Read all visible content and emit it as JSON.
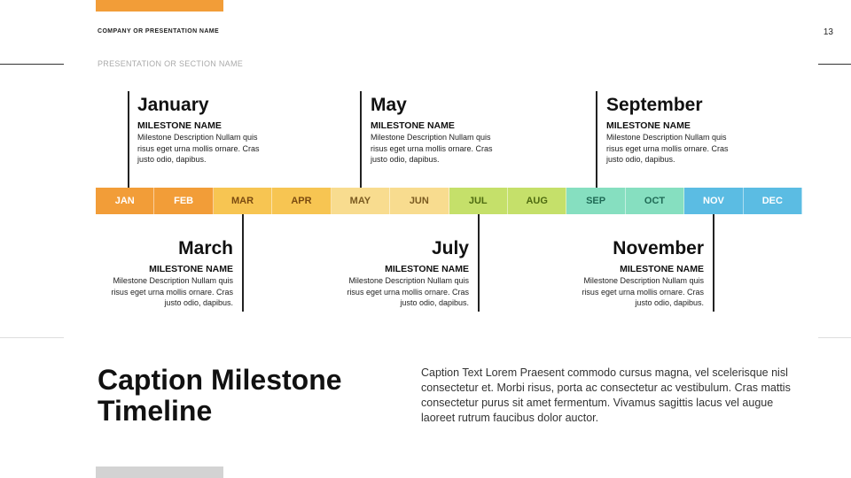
{
  "header": {
    "company": "COMPANY OR PRESENTATION NAME",
    "section": "PRESENTATION OR SECTION NAME",
    "page_number": "13"
  },
  "months": [
    {
      "label": "JAN",
      "bg": "#f29d38",
      "fg": "#ffffff"
    },
    {
      "label": "FEB",
      "bg": "#f29d38",
      "fg": "#ffffff"
    },
    {
      "label": "MAR",
      "bg": "#f7c552",
      "fg": "#7a4a10"
    },
    {
      "label": "APR",
      "bg": "#f7c552",
      "fg": "#7a4a10"
    },
    {
      "label": "MAY",
      "bg": "#f8dc8f",
      "fg": "#7a5a20"
    },
    {
      "label": "JUN",
      "bg": "#f8dc8f",
      "fg": "#7a5a20"
    },
    {
      "label": "JUL",
      "bg": "#c5e06a",
      "fg": "#4d6a10"
    },
    {
      "label": "AUG",
      "bg": "#c5e06a",
      "fg": "#4d6a10"
    },
    {
      "label": "SEP",
      "bg": "#86dfc0",
      "fg": "#1f6a55"
    },
    {
      "label": "OCT",
      "bg": "#86dfc0",
      "fg": "#1f6a55"
    },
    {
      "label": "NOV",
      "bg": "#5bbce3",
      "fg": "#ffffff"
    },
    {
      "label": "DEC",
      "bg": "#5bbce3",
      "fg": "#ffffff"
    }
  ],
  "milestones": [
    {
      "month": "January",
      "name": "MILESTONE NAME",
      "desc": "Milestone Description Nullam quis risus eget urna mollis ornare. Cras justo odio, dapibus."
    },
    {
      "month": "May",
      "name": "MILESTONE NAME",
      "desc": "Milestone Description Nullam quis risus eget urna mollis ornare. Cras justo odio, dapibus."
    },
    {
      "month": "September",
      "name": "MILESTONE NAME",
      "desc": "Milestone Description Nullam quis risus eget urna mollis ornare. Cras justo odio, dapibus."
    },
    {
      "month": "March",
      "name": "MILESTONE NAME",
      "desc": "Milestone Description Nullam quis risus eget urna mollis ornare. Cras justo odio, dapibus."
    },
    {
      "month": "July",
      "name": "MILESTONE NAME",
      "desc": "Milestone Description Nullam quis risus eget urna mollis ornare. Cras justo odio, dapibus."
    },
    {
      "month": "November",
      "name": "MILESTONE NAME",
      "desc": "Milestone Description Nullam quis risus eget urna mollis ornare. Cras justo odio, dapibus."
    }
  ],
  "caption": {
    "title": "Caption Milestone Timeline",
    "text": "Caption Text Lorem Praesent commodo cursus magna, vel scelerisque nisl consectetur et. Morbi risus, porta ac consectetur ac vestibulum. Cras mattis consectetur purus sit amet fermentum. Vivamus sagittis lacus vel augue laoreet rutrum faucibus dolor auctor."
  },
  "colors": {
    "accent": "#f29d38",
    "footer_bar": "#d3d3d3"
  }
}
